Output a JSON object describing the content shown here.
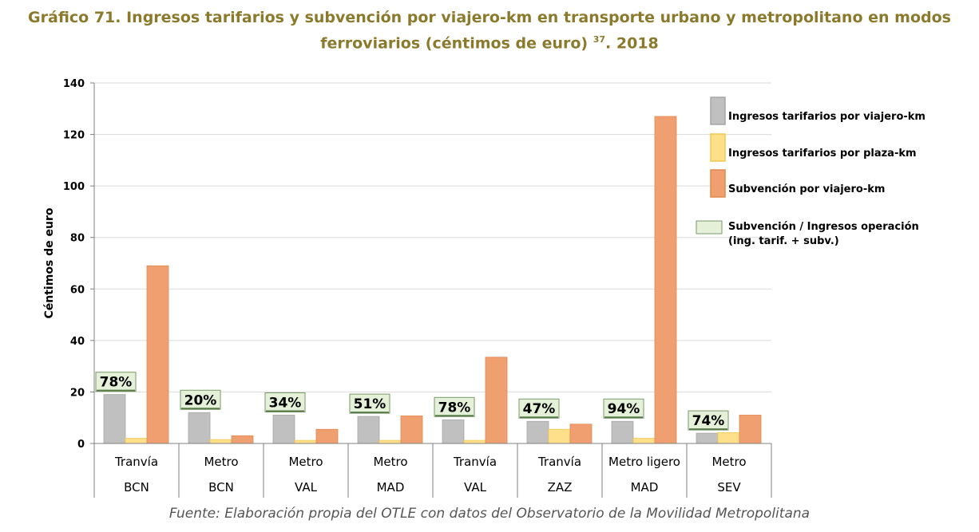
{
  "title": {
    "line1": "Gráfico 71. Ingresos tarifarios y subvención por viajero-km en transporte urbano y metropolitano en modos",
    "line2_prefix": "ferroviarios (céntimos de euro) ",
    "footnote": "37",
    "line2_suffix": ". 2018"
  },
  "source": "Fuente: Elaboración propia del OTLE con datos del Observatorio de la Movilidad Metropolitana",
  "colors": {
    "ingresos_viajero": "#c0c0c0",
    "ingresos_plaza": "#ffe08a",
    "subvencion": "#f0a070",
    "ratio_box": "#e4f0d8",
    "title": "#8b7a2c"
  },
  "chart_data": {
    "type": "bar",
    "ylabel": "Céntimos de euro",
    "ylim": [
      0,
      140
    ],
    "yticks": [
      0,
      20,
      40,
      60,
      80,
      100,
      120,
      140
    ],
    "grid": true,
    "legend_position": "right",
    "categories": [
      {
        "mode": "Tranvía",
        "city": "BCN"
      },
      {
        "mode": "Metro",
        "city": "BCN"
      },
      {
        "mode": "Metro",
        "city": "VAL"
      },
      {
        "mode": "Metro",
        "city": "MAD"
      },
      {
        "mode": "Tranvía",
        "city": "VAL"
      },
      {
        "mode": "Tranvía",
        "city": "ZAZ"
      },
      {
        "mode": "Metro ligero",
        "city": "MAD"
      },
      {
        "mode": "Metro",
        "city": "SEV"
      }
    ],
    "series": [
      {
        "name": "Ingresos tarifarios por viajero-km",
        "values": [
          19,
          12,
          11,
          10.5,
          9.2,
          8.6,
          8.6,
          4
        ]
      },
      {
        "name": "Ingresos tarifarios por plaza-km",
        "values": [
          2,
          1.5,
          1.2,
          1.2,
          1.2,
          5.5,
          2,
          4.2
        ]
      },
      {
        "name": "Subvención por viajero-km",
        "values": [
          69,
          3,
          5.5,
          10.7,
          33.5,
          7.5,
          127,
          11
        ]
      }
    ],
    "ratio_series": {
      "name": "Subvención / Ingresos operación (ing. tarif. + subv.)",
      "labels": [
        "78%",
        "20%",
        "34%",
        "51%",
        "78%",
        "47%",
        "94%",
        "74%"
      ]
    }
  }
}
